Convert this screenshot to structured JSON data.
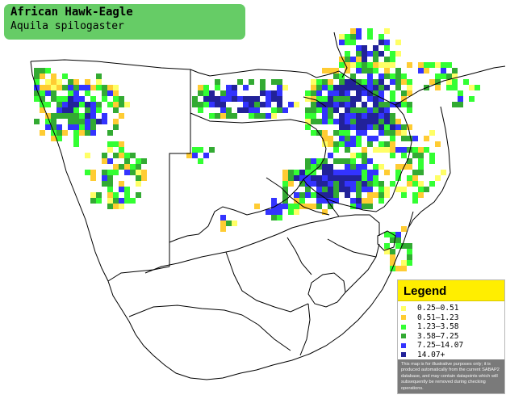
{
  "species": {
    "common_name": "African Hawk-Eagle",
    "scientific_name": "Aquila spilogaster"
  },
  "legend": {
    "title": "Legend",
    "items": [
      {
        "label": "0.25–0.51",
        "color": "#ffff66"
      },
      {
        "label": "0.51–1.23",
        "color": "#ffcc33"
      },
      {
        "label": "1.23–3.58",
        "color": "#33ff33"
      },
      {
        "label": "3.58–7.25",
        "color": "#33aa33"
      },
      {
        "label": "7.25–14.07",
        "color": "#3333ff"
      },
      {
        "label": "14.07+",
        "color": "#222299"
      }
    ],
    "note": "This map is for illustrative purposes only; it is produced automatically from the current SABAP2 database, and may contain datapoints which will subsequently be removed during checking operations."
  },
  "map_colors": {
    "border_line": "#000000",
    "land": "#ffffff",
    "cell_low": "#ffff66",
    "cell_lowmid": "#ffcc33",
    "cell_mid": "#33ff33",
    "cell_midhigh": "#33aa33",
    "cell_high": "#3333ff",
    "cell_top": "#222299"
  }
}
